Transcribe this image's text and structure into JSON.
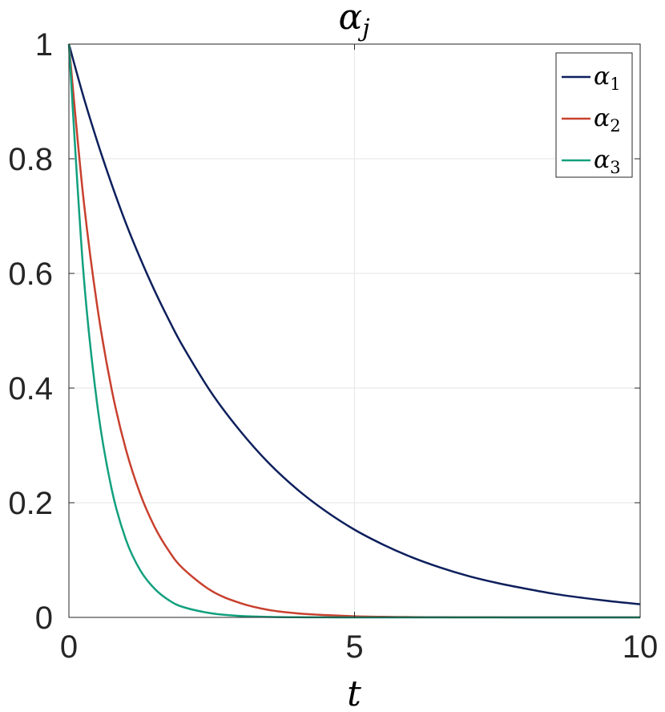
{
  "chart_data": {
    "type": "line",
    "title": "α",
    "title_subscript": "j",
    "xlabel": "t",
    "ylabel": "",
    "xlim": [
      0,
      10
    ],
    "ylim": [
      0,
      1
    ],
    "xticks": [
      0,
      5,
      10
    ],
    "xtick_labels": [
      "0",
      "5",
      "10"
    ],
    "yticks": [
      0,
      0.2,
      0.4,
      0.6,
      0.8,
      1
    ],
    "ytick_labels": [
      "0",
      "0.2",
      "0.4",
      "0.6",
      "0.8",
      "1"
    ],
    "grid": true,
    "legend_position": "top-right",
    "x": [
      0,
      0.25,
      0.5,
      0.75,
      1,
      1.25,
      1.5,
      1.75,
      2,
      2.5,
      3,
      3.5,
      4,
      4.5,
      5,
      5.5,
      6,
      6.5,
      7,
      7.5,
      8,
      8.5,
      9,
      9.5,
      10
    ],
    "series": [
      {
        "name": "α",
        "subscript": "1",
        "color": "#0d1f5c",
        "values": [
          1.0,
          0.91,
          0.829,
          0.755,
          0.687,
          0.626,
          0.57,
          0.519,
          0.472,
          0.391,
          0.325,
          0.269,
          0.223,
          0.185,
          0.153,
          0.127,
          0.105,
          0.087,
          0.072,
          0.06,
          0.05,
          0.041,
          0.034,
          0.028,
          0.023
        ]
      },
      {
        "name": "α",
        "subscript": "2",
        "color": "#c8402e",
        "values": [
          1.0,
          0.735,
          0.54,
          0.397,
          0.292,
          0.215,
          0.158,
          0.116,
          0.085,
          0.046,
          0.025,
          0.013,
          0.007,
          0.004,
          0.002,
          0.001,
          0.0006,
          0.0003,
          0.0002,
          0.0001,
          0.0,
          0.0,
          0.0,
          0.0,
          0.0
        ]
      },
      {
        "name": "α",
        "subscript": "3",
        "color": "#12a07e",
        "values": [
          1.0,
          0.607,
          0.368,
          0.223,
          0.135,
          0.082,
          0.05,
          0.03,
          0.018,
          0.007,
          0.0025,
          0.0009,
          0.0003,
          0.0001,
          0.0,
          0.0,
          0.0,
          0.0,
          0.0,
          0.0,
          0.0,
          0.0,
          0.0,
          0.0,
          0.0
        ]
      }
    ]
  }
}
